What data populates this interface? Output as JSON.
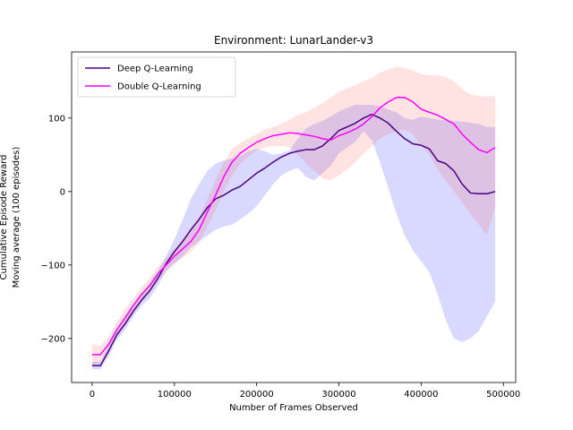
{
  "chart_data": {
    "type": "line",
    "title": "Environment: LunarLander-v3",
    "xlabel": "Number of Frames Observed",
    "ylabel": [
      "Cumulative Episode Reward",
      "Moving average (100 episodes)"
    ],
    "xlim": [
      -25000,
      515000
    ],
    "ylim": [
      -260,
      190
    ],
    "xticks": [
      0,
      100000,
      200000,
      300000,
      400000,
      500000
    ],
    "xtick_labels": [
      "0",
      "100000",
      "200000",
      "300000",
      "400000",
      "500000"
    ],
    "yticks": [
      -200,
      -100,
      0,
      100
    ],
    "ytick_labels": [
      "−200",
      "−100",
      "0",
      "100"
    ],
    "legend_position": "top-left",
    "grid": false,
    "series": [
      {
        "name": "Deep Q-Learning",
        "color": "#4b0082",
        "band_color": "#0000ff",
        "x": [
          0,
          10000,
          20000,
          30000,
          40000,
          50000,
          60000,
          70000,
          80000,
          90000,
          100000,
          110000,
          120000,
          130000,
          140000,
          150000,
          160000,
          170000,
          180000,
          190000,
          200000,
          210000,
          220000,
          230000,
          240000,
          250000,
          260000,
          270000,
          280000,
          290000,
          300000,
          310000,
          320000,
          330000,
          340000,
          350000,
          360000,
          370000,
          380000,
          390000,
          400000,
          410000,
          420000,
          430000,
          440000,
          450000,
          460000,
          470000,
          480000,
          490000
        ],
        "y": [
          -237,
          -237,
          -217,
          -195,
          -180,
          -163,
          -148,
          -135,
          -118,
          -98,
          -82,
          -68,
          -52,
          -38,
          -22,
          -10,
          -5,
          2,
          7,
          16,
          25,
          32,
          40,
          47,
          52,
          55,
          57,
          57,
          62,
          72,
          83,
          88,
          93,
          100,
          105,
          100,
          93,
          82,
          72,
          65,
          63,
          58,
          42,
          38,
          28,
          10,
          -2,
          -3,
          -3,
          0
        ],
        "upper": [
          -232,
          -232,
          -210,
          -188,
          -172,
          -156,
          -140,
          -125,
          -108,
          -88,
          -65,
          -38,
          -10,
          10,
          28,
          38,
          42,
          45,
          48,
          55,
          58,
          55,
          50,
          52,
          56,
          72,
          86,
          92,
          96,
          102,
          109,
          114,
          118,
          118,
          118,
          116,
          112,
          108,
          100,
          98,
          102,
          100,
          98,
          97,
          96,
          95,
          94,
          92,
          88,
          88
        ],
        "lower": [
          -242,
          -242,
          -224,
          -202,
          -188,
          -170,
          -156,
          -145,
          -128,
          -108,
          -98,
          -88,
          -76,
          -68,
          -60,
          -52,
          -48,
          -45,
          -38,
          -30,
          -20,
          -5,
          10,
          22,
          28,
          32,
          20,
          15,
          25,
          35,
          52,
          60,
          68,
          82,
          70,
          40,
          5,
          -30,
          -60,
          -80,
          -95,
          -110,
          -140,
          -175,
          -200,
          -205,
          -200,
          -190,
          -170,
          -150
        ]
      },
      {
        "name": "Double Q-Learning",
        "color": "#ff00ff",
        "band_color": "#ff4444",
        "x": [
          0,
          10000,
          20000,
          30000,
          40000,
          50000,
          60000,
          70000,
          80000,
          90000,
          100000,
          110000,
          120000,
          130000,
          140000,
          150000,
          160000,
          170000,
          180000,
          190000,
          200000,
          210000,
          220000,
          230000,
          240000,
          250000,
          260000,
          270000,
          280000,
          290000,
          300000,
          310000,
          320000,
          330000,
          340000,
          350000,
          360000,
          370000,
          380000,
          390000,
          400000,
          410000,
          420000,
          430000,
          440000,
          450000,
          460000,
          470000,
          480000,
          490000
        ],
        "y": [
          -222,
          -222,
          -208,
          -188,
          -172,
          -155,
          -140,
          -128,
          -112,
          -100,
          -88,
          -78,
          -68,
          -52,
          -28,
          -5,
          20,
          40,
          52,
          60,
          67,
          72,
          76,
          78,
          80,
          79,
          77,
          75,
          72,
          70,
          76,
          80,
          85,
          92,
          102,
          114,
          122,
          128,
          128,
          122,
          112,
          108,
          104,
          98,
          92,
          78,
          67,
          57,
          53,
          60
        ],
        "upper": [
          -208,
          -210,
          -198,
          -178,
          -160,
          -145,
          -130,
          -118,
          -102,
          -90,
          -78,
          -66,
          -54,
          -35,
          -10,
          15,
          40,
          58,
          66,
          72,
          78,
          84,
          88,
          92,
          98,
          104,
          108,
          114,
          120,
          128,
          136,
          140,
          145,
          150,
          155,
          162,
          166,
          170,
          168,
          165,
          160,
          158,
          158,
          156,
          150,
          140,
          132,
          130,
          130,
          130
        ],
        "lower": [
          -236,
          -234,
          -218,
          -198,
          -184,
          -166,
          -150,
          -138,
          -122,
          -110,
          -98,
          -90,
          -82,
          -70,
          -48,
          -26,
          0,
          22,
          38,
          48,
          56,
          60,
          62,
          62,
          60,
          50,
          38,
          28,
          18,
          15,
          22,
          30,
          40,
          52,
          62,
          72,
          78,
          82,
          84,
          78,
          62,
          50,
          30,
          15,
          0,
          -15,
          -30,
          -45,
          -60,
          -20
        ]
      }
    ]
  }
}
